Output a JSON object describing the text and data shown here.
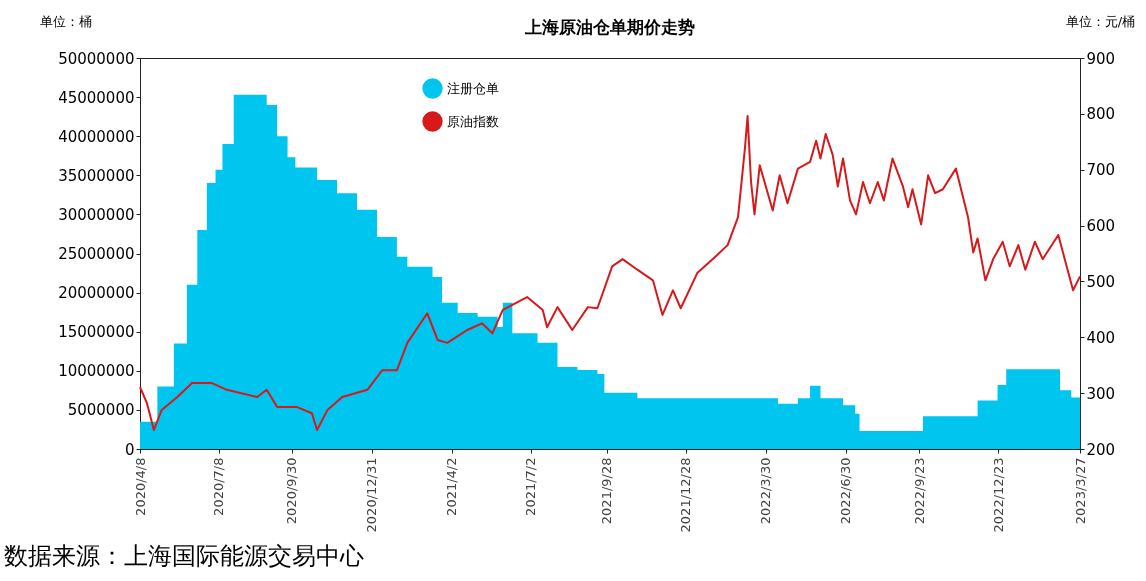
{
  "chart_data": {
    "type": "area",
    "title": "上海原油仓单期价走势",
    "ylabel": "单位：桶",
    "y2label": "单位：元/桶",
    "annotations": [
      "数据来源：上海国际能源交易中心"
    ],
    "xlim": [
      "2020-04-08",
      "2023-03-27"
    ],
    "xticks": [
      {
        "value": "2020-04-08",
        "label": "2020/4/8"
      },
      {
        "value": "2020-07-08",
        "label": "2020/7/8"
      },
      {
        "value": "2020-09-30",
        "label": "2020/9/30"
      },
      {
        "value": "2020-12-31",
        "label": "2020/12/31"
      },
      {
        "value": "2021-04-02",
        "label": "2021/4/2"
      },
      {
        "value": "2021-07-02",
        "label": "2021/7/2"
      },
      {
        "value": "2021-09-28",
        "label": "2021/9/28"
      },
      {
        "value": "2021-12-28",
        "label": "2021/12/28"
      },
      {
        "value": "2022-03-30",
        "label": "2022/3/30"
      },
      {
        "value": "2022-06-30",
        "label": "2022/6/30"
      },
      {
        "value": "2022-09-23",
        "label": "2022/9/23"
      },
      {
        "value": "2022-12-23",
        "label": "2022/12/23"
      },
      {
        "value": "2023-03-27",
        "label": "2023/3/27"
      }
    ],
    "ylim": [
      0,
      50000000
    ],
    "yticks": [
      0,
      5000000,
      10000000,
      15000000,
      20000000,
      25000000,
      30000000,
      35000000,
      40000000,
      45000000,
      50000000
    ],
    "y2lim": [
      200,
      900
    ],
    "y2ticks": [
      200,
      300,
      400,
      500,
      600,
      700,
      800,
      900
    ],
    "grid": false,
    "legend": "top",
    "series": [
      {
        "name": "注册仓单",
        "color": "#00c5ef",
        "x": [
          "2020-04-08",
          "2020-04-28",
          "2020-05-17",
          "2020-06-01",
          "2020-06-13",
          "2020-06-24",
          "2020-07-04",
          "2020-07-12",
          "2020-07-25",
          "2020-08-27",
          "2020-09-01",
          "2020-09-13",
          "2020-09-25",
          "2020-10-04",
          "2020-10-29",
          "2020-11-21",
          "2020-12-14",
          "2021-01-06",
          "2021-01-29",
          "2021-02-10",
          "2021-03-11",
          "2021-03-22",
          "2021-04-09",
          "2021-05-02",
          "2021-05-25",
          "2021-05-31",
          "2021-06-11",
          "2021-07-10",
          "2021-08-02",
          "2021-08-25",
          "2021-09-17",
          "2021-09-25",
          "2021-11-02",
          "2022-04-13",
          "2022-05-06",
          "2022-05-20",
          "2022-06-01",
          "2022-06-27",
          "2022-07-11",
          "2022-07-16",
          "2022-09-27",
          "2022-11-29",
          "2022-12-22",
          "2023-01-01",
          "2023-03-04",
          "2023-03-17",
          "2023-03-27"
        ],
        "values": [
          3500000,
          8000000,
          13500000,
          21000000,
          28000000,
          34000000,
          35700000,
          39000000,
          45300000,
          45300000,
          44000000,
          40000000,
          37300000,
          36000000,
          34400000,
          32700000,
          30600000,
          27100000,
          24600000,
          23300000,
          22000000,
          18700000,
          17400000,
          16900000,
          15600000,
          18700000,
          14800000,
          13600000,
          10500000,
          10100000,
          9600000,
          7200000,
          6500000,
          5800000,
          6500000,
          8100000,
          6500000,
          5600000,
          4500000,
          2300000,
          4200000,
          6200000,
          8200000,
          10200000,
          7500000,
          6600000,
          6600000
        ]
      },
      {
        "name": "原油指数",
        "type": "line",
        "axis": "y2",
        "color": "#d7191c",
        "x": [
          "2020-04-08",
          "2020-04-16",
          "2020-04-24",
          "2020-05-03",
          "2020-05-21",
          "2020-06-07",
          "2020-06-30",
          "2020-07-17",
          "2020-08-21",
          "2020-09-01",
          "2020-09-13",
          "2020-10-06",
          "2020-10-23",
          "2020-10-29",
          "2020-11-10",
          "2020-11-27",
          "2020-12-26",
          "2021-01-12",
          "2021-01-29",
          "2021-02-10",
          "2021-03-05",
          "2021-03-17",
          "2021-03-28",
          "2021-04-20",
          "2021-05-07",
          "2021-05-19",
          "2021-05-31",
          "2021-06-28",
          "2021-07-16",
          "2021-07-21",
          "2021-08-02",
          "2021-08-19",
          "2021-09-06",
          "2021-09-17",
          "2021-10-04",
          "2021-10-16",
          "2021-11-02",
          "2021-11-20",
          "2021-12-01",
          "2021-12-13",
          "2021-12-22",
          "2022-01-10",
          "2022-01-28",
          "2022-02-14",
          "2022-02-26",
          "2022-03-06",
          "2022-03-09",
          "2022-03-13",
          "2022-03-17",
          "2022-03-23",
          "2022-04-07",
          "2022-04-15",
          "2022-04-24",
          "2022-05-06",
          "2022-05-20",
          "2022-05-27",
          "2022-06-01",
          "2022-06-07",
          "2022-06-15",
          "2022-06-21",
          "2022-06-27",
          "2022-07-05",
          "2022-07-12",
          "2022-07-20",
          "2022-07-28",
          "2022-08-06",
          "2022-08-13",
          "2022-08-23",
          "2022-09-04",
          "2022-09-10",
          "2022-09-15",
          "2022-09-25",
          "2022-10-03",
          "2022-10-11",
          "2022-10-20",
          "2022-11-04",
          "2022-11-18",
          "2022-11-24",
          "2022-11-29",
          "2022-12-08",
          "2022-12-17",
          "2022-12-28",
          "2023-01-05",
          "2023-01-15",
          "2023-01-23",
          "2023-02-03",
          "2023-02-12",
          "2023-03-02",
          "2023-03-19",
          "2023-03-27"
        ],
        "values": [
          311,
          282,
          234,
          270,
          293,
          318,
          318,
          306,
          293,
          306,
          275,
          275,
          264,
          234,
          270,
          293,
          306,
          341,
          341,
          390,
          443,
          395,
          390,
          413,
          425,
          407,
          449,
          472,
          449,
          418,
          454,
          413,
          454,
          452,
          527,
          540,
          521,
          502,
          440,
          484,
          452,
          515,
          540,
          565,
          615,
          739,
          796,
          678,
          620,
          708,
          627,
          690,
          640,
          702,
          714,
          752,
          720,
          764,
          727,
          670,
          720,
          645,
          620,
          678,
          640,
          678,
          645,
          720,
          670,
          633,
          665,
          602,
          690,
          658,
          665,
          702,
          615,
          552,
          577,
          502,
          540,
          571,
          527,
          565,
          521,
          571,
          540,
          583,
          484,
          509
        ]
      }
    ]
  }
}
